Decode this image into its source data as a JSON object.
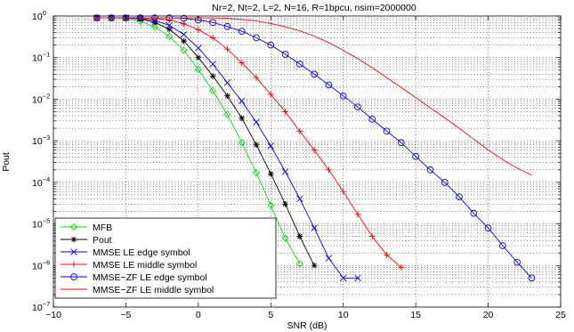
{
  "chart_data": {
    "type": "line",
    "title": "Nr=2, Nt=2, L=2, N=16, R=1bpcu, nsim=2000000",
    "xlabel": "SNR (dB)",
    "ylabel": "Pout",
    "xlim": [
      -10,
      25
    ],
    "ylim": [
      1e-07,
      1
    ],
    "y_scale": "log",
    "grid": true,
    "legend_position": "bottom-left",
    "x_ticks": [
      -10,
      -5,
      0,
      5,
      10,
      15,
      20,
      25
    ],
    "x_tick_labels": [
      "−10",
      "−5",
      "0",
      "5",
      "10",
      "15",
      "20",
      "25"
    ],
    "y_ticks": [
      {
        "value": 1,
        "base": "10",
        "exp": "0"
      },
      {
        "value": 0.1,
        "base": "10",
        "exp": "−1"
      },
      {
        "value": 0.01,
        "base": "10",
        "exp": "−2"
      },
      {
        "value": 0.001,
        "base": "10",
        "exp": "−3"
      },
      {
        "value": 0.0001,
        "base": "10",
        "exp": "−4"
      },
      {
        "value": 1e-05,
        "base": "10",
        "exp": "−5"
      },
      {
        "value": 1e-06,
        "base": "10",
        "exp": "−6"
      },
      {
        "value": 1e-07,
        "base": "10",
        "exp": "−7"
      }
    ],
    "series": [
      {
        "name": "MFB",
        "color": "#00dd00",
        "marker": "diamond",
        "x": [
          -7,
          -6,
          -5,
          -4,
          -3,
          -2,
          -1,
          0,
          1,
          2,
          3,
          4,
          5,
          6,
          7
        ],
        "y": [
          0.9,
          0.9,
          0.88,
          0.75,
          0.55,
          0.32,
          0.15,
          0.052,
          0.016,
          0.0043,
          0.0009,
          0.00017,
          2.8e-05,
          4.5e-06,
          1.1e-06
        ]
      },
      {
        "name": "Pout",
        "color": "#000000",
        "marker": "star",
        "x": [
          -7,
          -6,
          -5,
          -4,
          -3,
          -2,
          -1,
          0,
          1,
          2,
          3,
          4,
          5,
          6,
          7,
          8
        ],
        "y": [
          0.9,
          0.9,
          0.9,
          0.85,
          0.7,
          0.48,
          0.25,
          0.1,
          0.036,
          0.012,
          0.0035,
          0.0008,
          0.00016,
          3e-05,
          5e-06,
          1e-06
        ]
      },
      {
        "name": "MMSE LE edge symbol",
        "color": "#0000ff",
        "marker": "x",
        "x": [
          -7,
          -6,
          -5,
          -4,
          -3,
          -2,
          -1,
          0,
          1,
          2,
          3,
          4,
          5,
          6,
          7,
          8,
          9,
          10,
          11
        ],
        "y": [
          0.9,
          0.9,
          0.9,
          0.88,
          0.78,
          0.6,
          0.36,
          0.17,
          0.07,
          0.025,
          0.009,
          0.0028,
          0.00075,
          0.00018,
          4e-05,
          8e-06,
          1.5e-06,
          5e-07,
          5e-07
        ]
      },
      {
        "name": "MMSE LE middle symbol",
        "color": "#ff0000",
        "marker": "plus",
        "x": [
          -7,
          -6,
          -5,
          -4,
          -3,
          -2,
          -1,
          0,
          1,
          2,
          3,
          4,
          5,
          6,
          7,
          8,
          9,
          10,
          11,
          12,
          13,
          14
        ],
        "y": [
          0.9,
          0.9,
          0.9,
          0.9,
          0.88,
          0.8,
          0.65,
          0.47,
          0.3,
          0.16,
          0.075,
          0.033,
          0.013,
          0.005,
          0.0017,
          0.0006,
          0.0002,
          6e-05,
          1.7e-05,
          5e-06,
          1.8e-06,
          9e-07
        ]
      },
      {
        "name": "MMSE−ZF LE edge symbol",
        "color": "#0000ff",
        "marker": "circle",
        "x": [
          -7,
          -6,
          -5,
          -4,
          -3,
          -2,
          -1,
          0,
          1,
          2,
          3,
          4,
          5,
          6,
          7,
          8,
          9,
          10,
          11,
          12,
          13,
          14,
          15,
          16,
          17,
          18,
          19,
          20,
          21,
          22,
          23
        ],
        "y": [
          0.9,
          0.9,
          0.9,
          0.9,
          0.9,
          0.9,
          0.88,
          0.8,
          0.7,
          0.56,
          0.43,
          0.3,
          0.2,
          0.12,
          0.07,
          0.04,
          0.022,
          0.012,
          0.0065,
          0.0033,
          0.0017,
          0.0009,
          0.00042,
          0.0002,
          0.0001,
          4.5e-05,
          1.8e-05,
          8e-06,
          3e-06,
          1.2e-06,
          5e-07
        ]
      },
      {
        "name": "MMSE−ZF LE middle symbol",
        "color": "#ff0000",
        "marker": "none",
        "x": [
          -7,
          -6,
          -5,
          -4,
          -3,
          -2,
          -1,
          0,
          1,
          2,
          3,
          4,
          5,
          6,
          7,
          8,
          9,
          10,
          11,
          12,
          13,
          14,
          15,
          16,
          17,
          18,
          19,
          20,
          21,
          22,
          23
        ],
        "y": [
          0.9,
          0.9,
          0.9,
          0.9,
          0.9,
          0.9,
          0.9,
          0.9,
          0.9,
          0.88,
          0.83,
          0.76,
          0.66,
          0.55,
          0.44,
          0.33,
          0.23,
          0.15,
          0.095,
          0.057,
          0.033,
          0.019,
          0.011,
          0.0062,
          0.0036,
          0.002,
          0.0011,
          0.0006,
          0.00035,
          0.00022,
          0.00015
        ]
      }
    ]
  }
}
